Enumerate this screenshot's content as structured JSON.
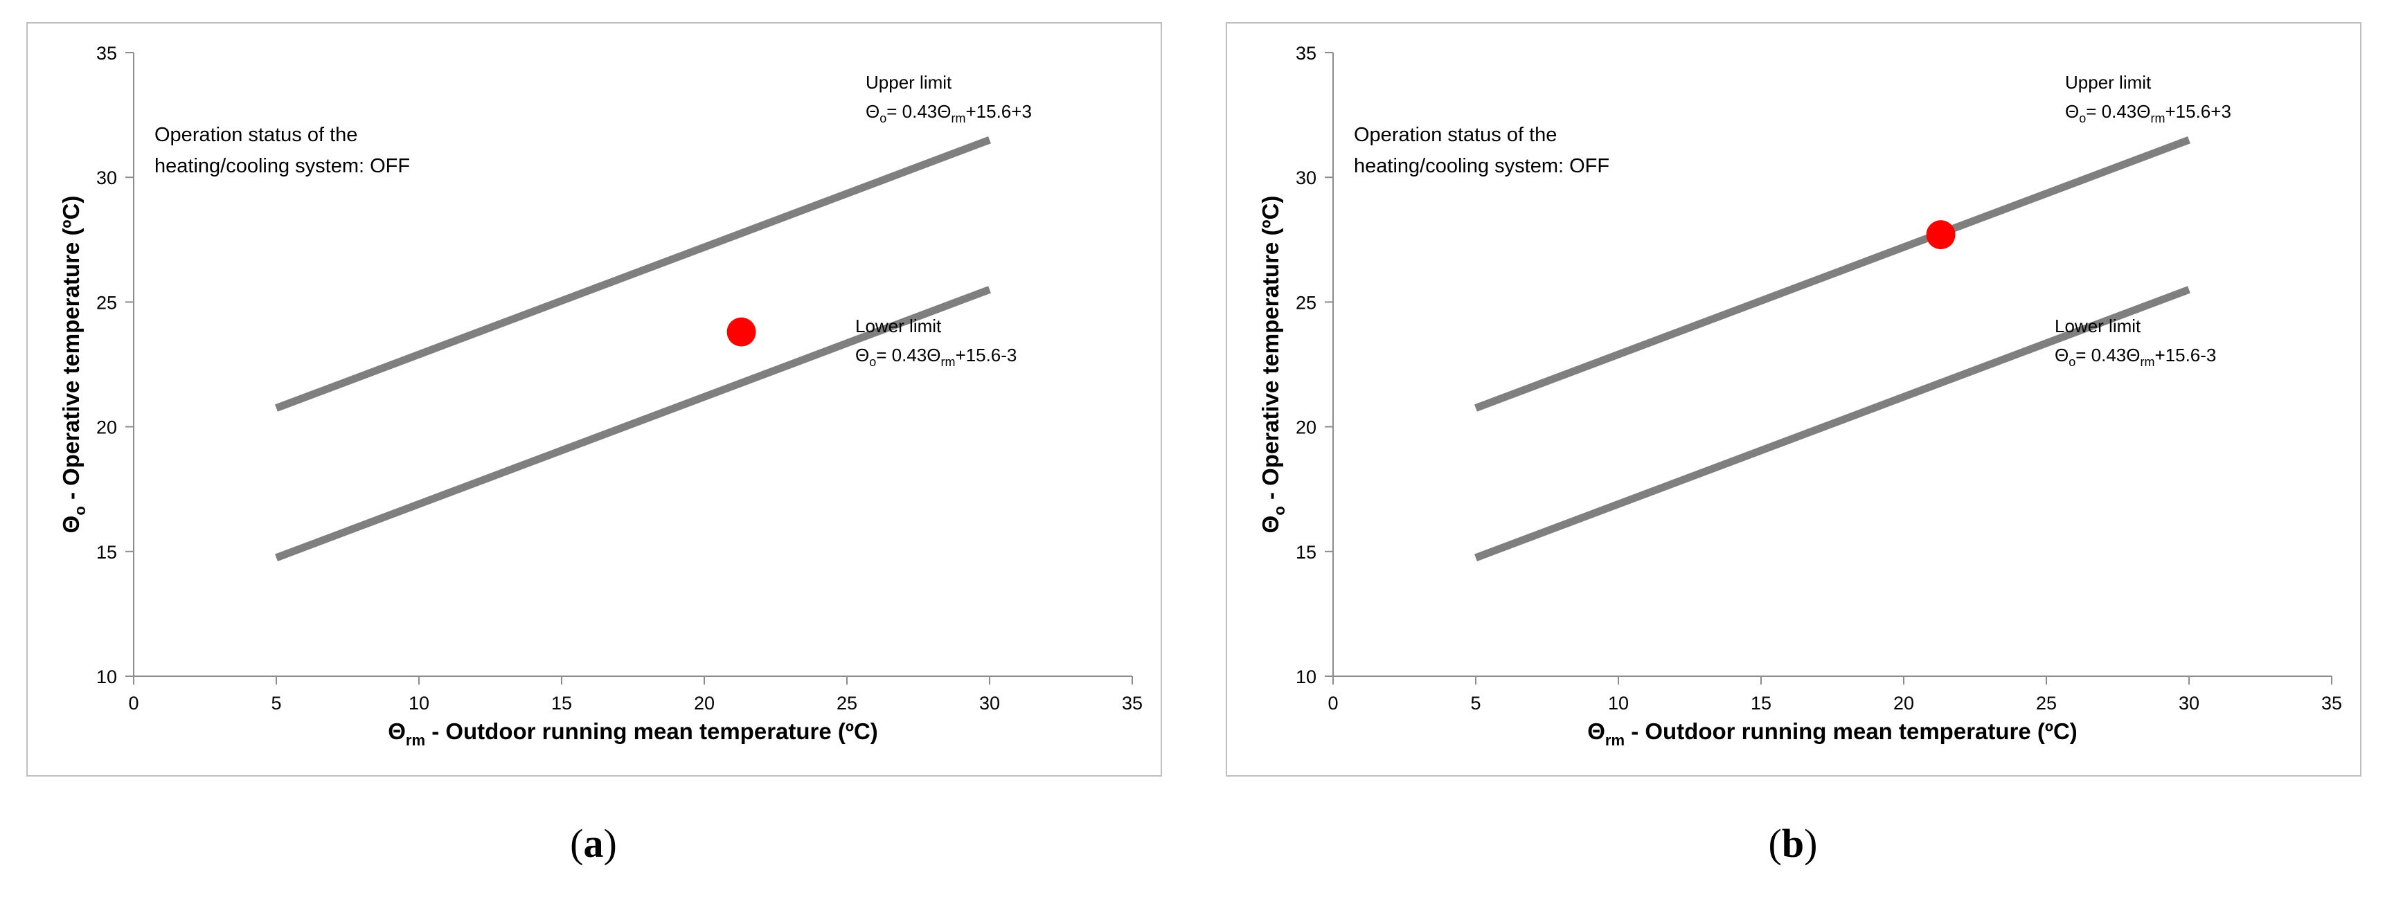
{
  "captions": [
    "a",
    "b"
  ],
  "chart_data": [
    {
      "type": "line",
      "panel": "a",
      "xlabel": {
        "prefix": "Θ",
        "sub": "rm",
        "text": " - Outdoor running mean temperature (ºC)"
      },
      "ylabel": {
        "prefix": "Θ",
        "sub": "o",
        "text": " - Operative temperature (ºC)"
      },
      "xlim": [
        0,
        35
      ],
      "ylim": [
        10,
        35
      ],
      "xticks": [
        0,
        5,
        10,
        15,
        20,
        25,
        30,
        35
      ],
      "yticks": [
        10,
        15,
        20,
        25,
        30,
        35
      ],
      "status_text": [
        "Operation status of the",
        "heating/cooling system: OFF"
      ],
      "series": [
        {
          "name": "Upper limit",
          "color": "#7f7f7f",
          "equation": {
            "lead": "Θ",
            "lead_sub": "o",
            "mid": "= 0.43Θ",
            "mid_sub": "rm",
            "tail": "+15.6+3"
          },
          "x": [
            5,
            30
          ],
          "y": [
            20.75,
            31.5
          ]
        },
        {
          "name": "Lower limit",
          "color": "#7f7f7f",
          "equation": {
            "lead": "Θ",
            "lead_sub": "o",
            "mid": "= 0.43Θ",
            "mid_sub": "rm",
            "tail": "+15.6-3"
          },
          "x": [
            5,
            30
          ],
          "y": [
            14.75,
            25.5
          ]
        }
      ],
      "point": {
        "x": 21.3,
        "y": 23.8,
        "color": "#ff0000"
      }
    },
    {
      "type": "line",
      "panel": "b",
      "xlabel": {
        "prefix": "Θ",
        "sub": "rm",
        "text": " - Outdoor running mean temperature (ºC)"
      },
      "ylabel": {
        "prefix": "Θ",
        "sub": "o",
        "text": " - Operative temperature (ºC)"
      },
      "xlim": [
        0,
        35
      ],
      "ylim": [
        10,
        35
      ],
      "xticks": [
        0,
        5,
        10,
        15,
        20,
        25,
        30,
        35
      ],
      "yticks": [
        10,
        15,
        20,
        25,
        30,
        35
      ],
      "status_text": [
        "Operation status of the",
        "heating/cooling system: OFF"
      ],
      "series": [
        {
          "name": "Upper limit",
          "color": "#7f7f7f",
          "equation": {
            "lead": "Θ",
            "lead_sub": "o",
            "mid": "= 0.43Θ",
            "mid_sub": "rm",
            "tail": "+15.6+3"
          },
          "x": [
            5,
            30
          ],
          "y": [
            20.75,
            31.5
          ]
        },
        {
          "name": "Lower limit",
          "color": "#7f7f7f",
          "equation": {
            "lead": "Θ",
            "lead_sub": "o",
            "mid": "= 0.43Θ",
            "mid_sub": "rm",
            "tail": "+15.6-3"
          },
          "x": [
            5,
            30
          ],
          "y": [
            14.75,
            25.5
          ]
        }
      ],
      "point": {
        "x": 21.3,
        "y": 27.7,
        "color": "#ff0000"
      }
    }
  ]
}
